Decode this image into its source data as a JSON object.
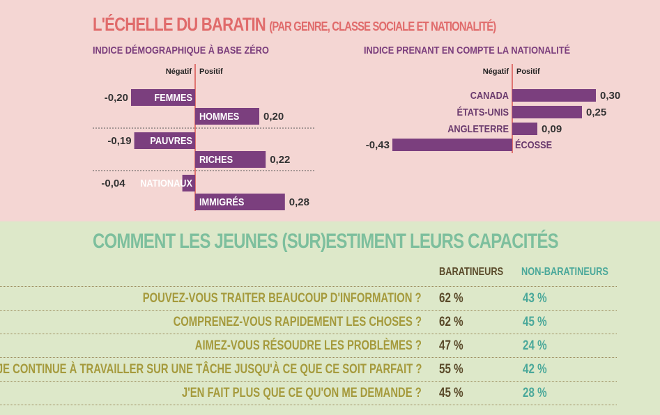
{
  "title": "L'ÉCHELLE DU BARATIN",
  "title_sub": "(PAR GENRE, CLASSE SOCIALE ET NATIONALITÉ)",
  "chart_data": [
    {
      "type": "bar",
      "orientation": "horizontal",
      "title": "INDICE DÉMOGRAPHIQUE À BASE ZÉRO",
      "neg_label": "Négatif",
      "pos_label": "Positif",
      "categories": [
        "FEMMES",
        "HOMMES",
        "PAUVRES",
        "RICHES",
        "NATIONAUX",
        "IMMIGRÉS"
      ],
      "values": [
        -0.2,
        0.2,
        -0.19,
        0.22,
        -0.04,
        0.28
      ],
      "value_labels": [
        "-0,20",
        "0,20",
        "-0,19",
        "0,22",
        "-0,04",
        "0,28"
      ],
      "groups": [
        [
          "FEMMES",
          "HOMMES"
        ],
        [
          "PAUVRES",
          "RICHES"
        ],
        [
          "NATIONAUX",
          "IMMIGRÉS"
        ]
      ],
      "bar_color": "#7b3f7e"
    },
    {
      "type": "bar",
      "orientation": "horizontal",
      "title": "INDICE PRENANT EN COMPTE LA NATIONALITÉ",
      "neg_label": "Négatif",
      "pos_label": "Positif",
      "categories": [
        "CANADA",
        "ÉTATS-UNIS",
        "ANGLETERRE",
        "ÉCOSSE"
      ],
      "values": [
        0.3,
        0.25,
        0.09,
        -0.43
      ],
      "value_labels": [
        "0,30",
        "0,25",
        "0,09",
        "-0,43"
      ],
      "bar_color": "#7b3f7e"
    },
    {
      "type": "table",
      "title": "COMMENT LES JEUNES (SUR)ESTIMENT LEURS CAPACITÉS",
      "columns": [
        "BARATINEURS",
        "NON-BARATINEURS"
      ],
      "rows": [
        {
          "question": "POUVEZ-VOUS TRAITER BEAUCOUP D'INFORMATION ?",
          "baratineurs": "62 %",
          "non_baratineurs": "43 %"
        },
        {
          "question": "COMPRENEZ-VOUS RAPIDEMENT LES CHOSES ?",
          "baratineurs": "62 %",
          "non_baratineurs": "45 %"
        },
        {
          "question": "AIMEZ-VOUS RÉSOUDRE LES PROBLÈMES ?",
          "baratineurs": "47 %",
          "non_baratineurs": "24 %"
        },
        {
          "question": "JE CONTINUE À TRAVAILLER SUR UNE TÂCHE JUSQU'À CE QUE CE SOIT PARFAIT ?",
          "baratineurs": "55 %",
          "non_baratineurs": "42 %"
        },
        {
          "question": "J'EN FAIT PLUS QUE CE QU'ON ME DEMANDE ?",
          "baratineurs": "45 %",
          "non_baratineurs": "28 %"
        }
      ]
    }
  ],
  "colors": {
    "top_bg": "#f4d6d3",
    "bottom_bg": "#dde8c9",
    "bar": "#7b3f7e",
    "axis": "#d9534f",
    "title_red": "#e06b6b",
    "title_green": "#7dbf9d",
    "question_olive": "#a59a3c",
    "baratineurs_brown": "#5a4a2a",
    "non_baratineurs_teal": "#4aa89a"
  }
}
